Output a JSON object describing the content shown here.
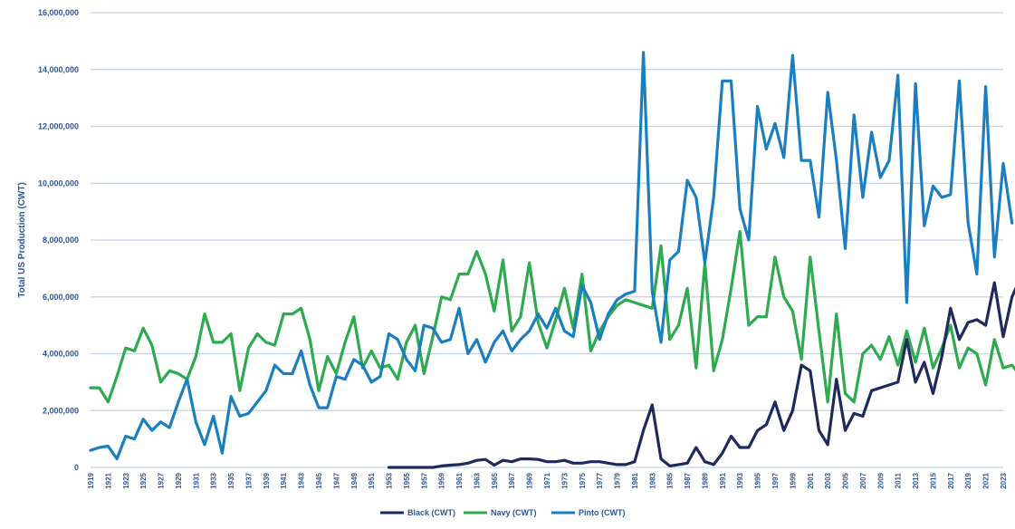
{
  "chart_data": {
    "type": "line",
    "title": "",
    "ylabel": "Total US Production (CWT)",
    "xlabel": "",
    "ylim": [
      0,
      16000000
    ],
    "yticks": [
      0,
      2000000,
      4000000,
      6000000,
      8000000,
      10000000,
      12000000,
      14000000,
      16000000
    ],
    "ytick_labels": [
      "0",
      "2,000,000",
      "4,000,000",
      "6,000,000",
      "8,000,000",
      "10,000,000",
      "12,000,000",
      "14,000,000",
      "16,000,000"
    ],
    "x_start": 1919,
    "x_end": 2023,
    "xtick_labels": [
      "1919",
      "1921",
      "1923",
      "1925",
      "1927",
      "1929",
      "1931",
      "1933",
      "1935",
      "1937",
      "1939",
      "1941",
      "1943",
      "1945",
      "1947",
      "1949",
      "1951",
      "1953",
      "1955",
      "1957",
      "1959",
      "1961",
      "1963",
      "1965",
      "1967",
      "1969",
      "1971",
      "1973",
      "1975",
      "1977",
      "1979",
      "1981",
      "1983",
      "1985",
      "1987",
      "1989",
      "1991",
      "1993",
      "1995",
      "1997",
      "1999",
      "2001",
      "2003",
      "2005",
      "2007",
      "2009",
      "2011",
      "2013",
      "2015",
      "2017",
      "2019",
      "2021",
      "2023"
    ],
    "grid": true,
    "legend_position": "bottom",
    "colors": {
      "black": "#1f2a5c",
      "navy": "#2eaa4f",
      "pinto": "#1b7fbf",
      "grid": "#c5d3e6",
      "text": "#2f5597"
    },
    "series": [
      {
        "name": "Black (CWT)",
        "x_start": 1953,
        "values": [
          0,
          0,
          0,
          0,
          0,
          0,
          50000,
          80000,
          100000,
          150000,
          250000,
          280000,
          80000,
          250000,
          200000,
          300000,
          300000,
          280000,
          200000,
          200000,
          250000,
          150000,
          150000,
          200000,
          200000,
          150000,
          100000,
          100000,
          200000,
          1300000,
          2200000,
          300000,
          50000,
          100000,
          150000,
          700000,
          200000,
          100000,
          500000,
          1100000,
          700000,
          700000,
          1300000,
          1500000,
          2300000,
          1300000,
          2000000,
          3600000,
          3400000,
          1300000,
          800000,
          3100000,
          1300000,
          1900000,
          1800000,
          2700000,
          2800000,
          2900000,
          3000000,
          4500000,
          3000000,
          3700000,
          2600000,
          3900000,
          5600000,
          4500000,
          5100000,
          5200000,
          5000000,
          6500000,
          4600000,
          6000000,
          6700000
        ]
      },
      {
        "name": "Navy (CWT)",
        "x_start": 1919,
        "values": [
          2800000,
          2800000,
          2300000,
          3200000,
          4200000,
          4100000,
          4900000,
          4300000,
          3000000,
          3400000,
          3300000,
          3100000,
          3900000,
          5400000,
          4400000,
          4400000,
          4700000,
          2700000,
          4200000,
          4700000,
          4400000,
          4300000,
          5400000,
          5400000,
          5600000,
          4500000,
          2700000,
          3900000,
          3300000,
          4400000,
          5300000,
          3500000,
          4100000,
          3500000,
          3600000,
          3100000,
          4400000,
          5000000,
          3300000,
          4600000,
          6000000,
          5900000,
          6800000,
          6800000,
          7600000,
          6800000,
          5500000,
          7300000,
          4800000,
          5300000,
          7200000,
          5100000,
          4200000,
          5200000,
          6300000,
          4900000,
          6800000,
          4100000,
          4800000,
          5300000,
          5700000,
          5900000,
          5800000,
          5700000,
          5600000,
          7800000,
          4500000,
          5000000,
          6300000,
          3500000,
          7200000,
          3400000,
          4500000,
          6300000,
          8300000,
          5000000,
          5300000,
          5300000,
          7400000,
          6000000,
          5500000,
          3800000,
          7400000,
          4800000,
          2300000,
          5400000,
          2600000,
          2300000,
          4000000,
          4300000,
          3800000,
          4600000,
          3600000,
          4800000,
          3700000,
          4900000,
          3500000,
          4200000,
          5000000,
          3500000,
          4200000,
          4000000,
          2900000,
          4500000,
          3500000,
          3600000,
          3200000
        ]
      },
      {
        "name": "Pinto (CWT)",
        "x_start": 1919,
        "values": [
          600000,
          700000,
          750000,
          300000,
          1100000,
          1000000,
          1700000,
          1300000,
          1600000,
          1400000,
          2300000,
          3100000,
          1600000,
          800000,
          1800000,
          500000,
          2500000,
          1800000,
          1900000,
          2300000,
          2700000,
          3600000,
          3300000,
          3300000,
          4100000,
          2900000,
          2100000,
          2100000,
          3200000,
          3100000,
          3800000,
          3600000,
          3000000,
          3200000,
          4700000,
          4500000,
          3800000,
          3400000,
          5000000,
          4900000,
          4400000,
          4500000,
          5600000,
          4000000,
          4500000,
          3700000,
          4400000,
          4800000,
          4100000,
          4500000,
          4800000,
          5400000,
          4900000,
          5600000,
          4800000,
          4600000,
          6400000,
          5800000,
          4500000,
          5400000,
          5900000,
          6100000,
          6200000,
          14600000,
          6200000,
          4400000,
          7300000,
          7600000,
          10100000,
          9500000,
          7200000,
          9500000,
          13600000,
          13600000,
          9100000,
          8000000,
          12700000,
          11200000,
          12100000,
          10900000,
          14500000,
          10800000,
          10800000,
          8800000,
          13200000,
          10800000,
          7700000,
          12400000,
          9500000,
          11800000,
          10200000,
          10800000,
          13800000,
          5800000,
          13500000,
          8500000,
          9900000,
          9500000,
          9600000,
          13600000,
          8600000,
          6800000,
          13400000,
          7400000,
          10700000,
          8600000
        ]
      }
    ]
  },
  "legend": {
    "black": "Black (CWT)",
    "navy": "Navy (CWT)",
    "pinto": "Pinto (CWT)"
  }
}
